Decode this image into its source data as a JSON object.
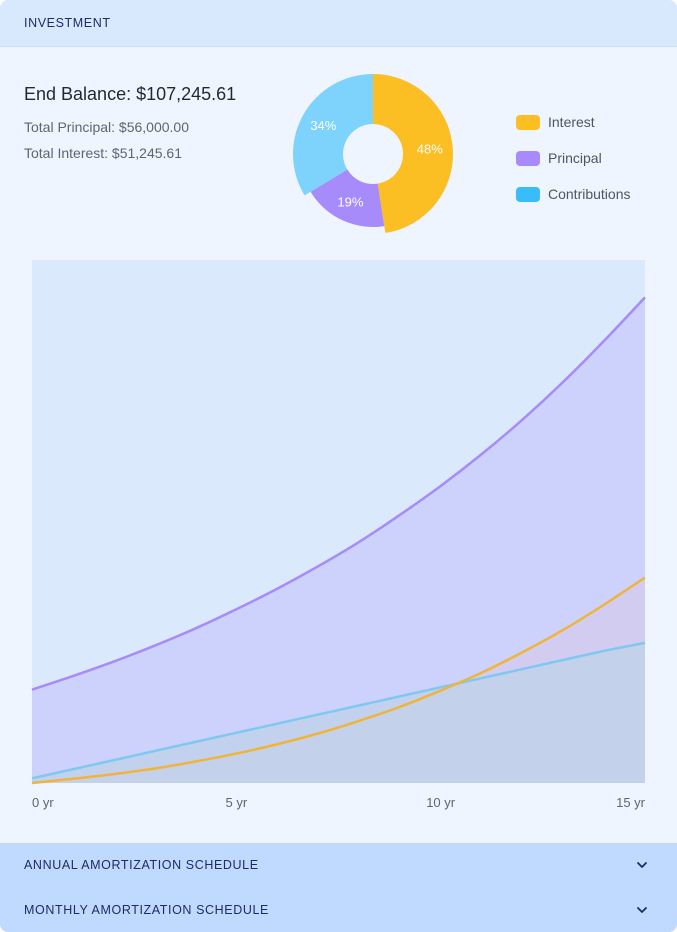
{
  "header": {
    "title": "INVESTMENT"
  },
  "summary": {
    "end_balance": "End Balance: $107,245.61",
    "total_principal": "Total Principal: $56,000.00",
    "total_interest": "Total Interest: $51,245.61"
  },
  "colors": {
    "interest": "#fbbf24",
    "principal": "#a78bfa",
    "contributions": "#38bdf8",
    "contributions_pie": "#7dd3fc",
    "contributions_line": "#7ec8f2",
    "plot_background": "#dbe9fd"
  },
  "chart_data": [
    {
      "type": "pie",
      "style": "donut",
      "slices": [
        {
          "key": "interest",
          "label": "Interest",
          "value": 48,
          "label_text": "48%"
        },
        {
          "key": "principal",
          "label": "Principal",
          "value": 19,
          "label_text": "19%"
        },
        {
          "key": "contributions",
          "label": "Contributions",
          "value": 34,
          "label_text": "34%"
        }
      ],
      "legend": [
        {
          "label": "Interest",
          "color_key": "interest"
        },
        {
          "label": "Principal",
          "color_key": "principal"
        },
        {
          "label": "Contributions",
          "color_key": "contributions"
        }
      ],
      "legend_position": "right"
    },
    {
      "type": "area",
      "x": [
        0,
        1,
        2,
        3,
        4,
        5,
        6,
        7,
        8,
        9,
        10,
        11,
        12,
        13,
        14,
        15
      ],
      "x_tick_labels": [
        "0 yr",
        "5 yr",
        "10 yr",
        "15 yr"
      ],
      "x_tick_values": [
        0,
        5,
        10,
        15
      ],
      "xlim": [
        0,
        15
      ],
      "ylim": [
        0,
        112000
      ],
      "grid": false,
      "series": [
        {
          "key": "principal",
          "values": [
            20000,
            22900,
            26000,
            29400,
            33100,
            37200,
            41600,
            46400,
            51600,
            57400,
            63600,
            70400,
            77800,
            85900,
            94700,
            104000
          ]
        },
        {
          "key": "interest",
          "values": [
            0,
            900,
            1900,
            3100,
            4600,
            6300,
            8300,
            10600,
            13300,
            16300,
            19800,
            23600,
            28000,
            32800,
            38200,
            44000
          ]
        },
        {
          "key": "contributions",
          "values": [
            1000,
            2950,
            4900,
            6850,
            8800,
            10750,
            12700,
            14650,
            16600,
            18550,
            20500,
            22450,
            24400,
            26350,
            28300,
            30000
          ]
        }
      ]
    }
  ],
  "accordions": [
    {
      "label": "ANNUAL AMORTIZATION SCHEDULE"
    },
    {
      "label": "MONTHLY AMORTIZATION SCHEDULE"
    }
  ]
}
